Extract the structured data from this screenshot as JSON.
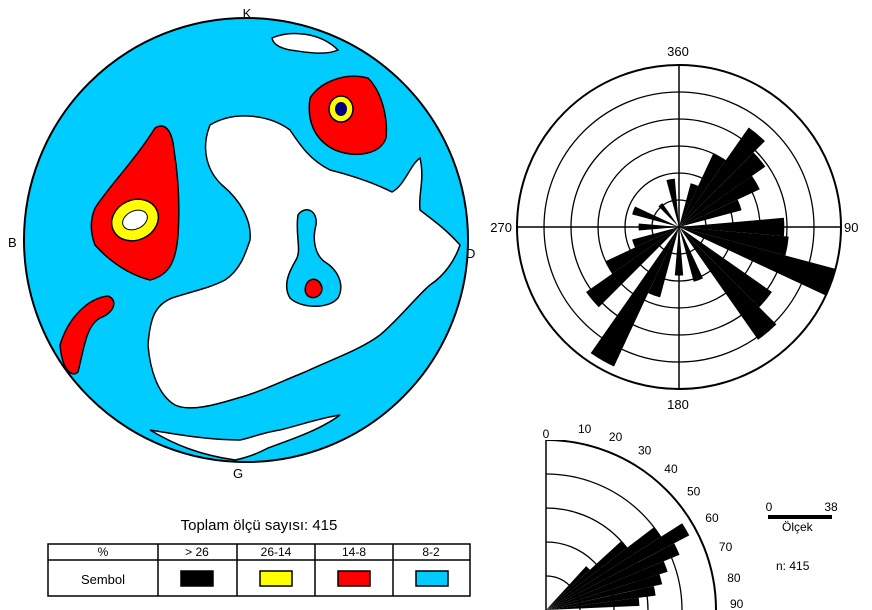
{
  "stereonet": {
    "labels": {
      "north": "K",
      "west": "B",
      "east": "D",
      "south": "G"
    }
  },
  "rose": {
    "labels": {
      "n": "360",
      "e": "90",
      "s": "180",
      "w": "270"
    }
  },
  "dip_rose": {
    "labels": [
      "0",
      "10",
      "20",
      "30",
      "40",
      "50",
      "60",
      "70",
      "80",
      "90"
    ]
  },
  "scale": {
    "min": "0",
    "max": "38",
    "label": "Ölçek",
    "count": "n: 415"
  },
  "total": "Toplam ölçü sayısı: 415",
  "legend": {
    "header": "%",
    "row_label": "Sembol",
    "classes": [
      {
        "range": "> 26",
        "color": "#000000"
      },
      {
        "range": "26-14",
        "color": "#ffff00"
      },
      {
        "range": "14-8",
        "color": "#ff0000"
      },
      {
        "range": "8-2",
        "color": "#00ccff"
      }
    ]
  },
  "chart_data": {
    "type": "rose",
    "rose_petal_lengths_relative": [
      {
        "azimuth": 20,
        "value": 0.28
      },
      {
        "azimuth": 30,
        "value": 0.5
      },
      {
        "azimuth": 40,
        "value": 0.75
      },
      {
        "azimuth": 50,
        "value": 0.65
      },
      {
        "azimuth": 60,
        "value": 0.55
      },
      {
        "azimuth": 70,
        "value": 0.4
      },
      {
        "azimuth": 90,
        "value": 0.65
      },
      {
        "azimuth": 100,
        "value": 0.68
      },
      {
        "azimuth": 110,
        "value": 1.0
      },
      {
        "azimuth": 130,
        "value": 0.7
      },
      {
        "azimuth": 140,
        "value": 0.85
      },
      {
        "azimuth": 160,
        "value": 0.35
      },
      {
        "azimuth": 180,
        "value": 0.3
      },
      {
        "azimuth": 200,
        "value": 0.45
      },
      {
        "azimuth": 210,
        "value": 0.95
      },
      {
        "azimuth": 230,
        "value": 0.7
      },
      {
        "azimuth": 240,
        "value": 0.5
      },
      {
        "azimuth": 250,
        "value": 0.3
      },
      {
        "azimuth": 270,
        "value": 0.25
      },
      {
        "azimuth": 290,
        "value": 0.3
      },
      {
        "azimuth": 320,
        "value": 0.18
      },
      {
        "azimuth": 350,
        "value": 0.3
      }
    ],
    "dip_histogram_relative": [
      {
        "dip": 45,
        "value": 0.35
      },
      {
        "dip": 50,
        "value": 0.6
      },
      {
        "dip": 55,
        "value": 0.8
      },
      {
        "dip": 60,
        "value": 0.95
      },
      {
        "dip": 65,
        "value": 0.85
      },
      {
        "dip": 70,
        "value": 0.75
      },
      {
        "dip": 75,
        "value": 0.7
      },
      {
        "dip": 80,
        "value": 0.65
      },
      {
        "dip": 85,
        "value": 0.55
      }
    ]
  }
}
